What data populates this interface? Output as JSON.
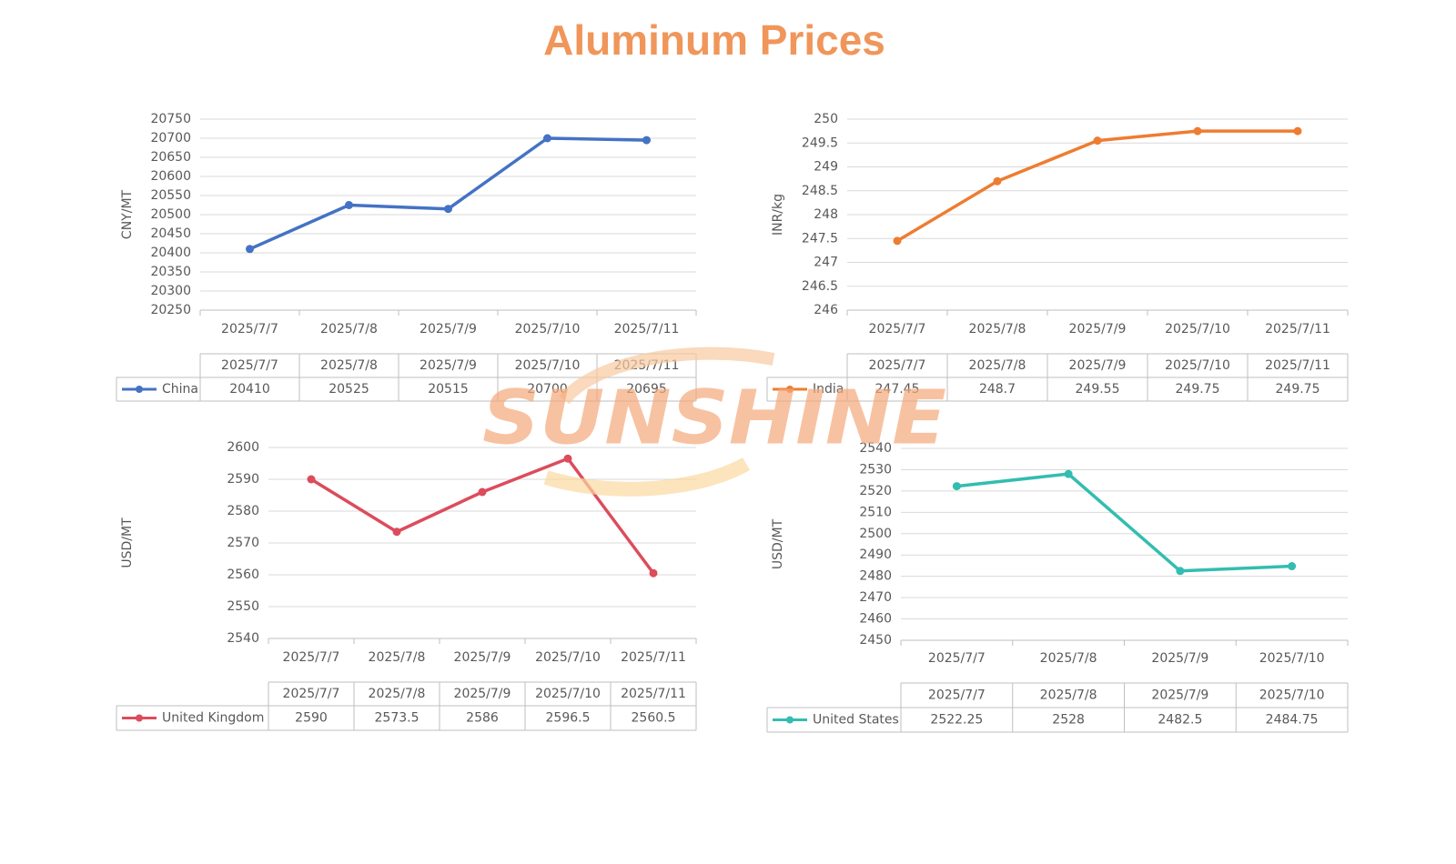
{
  "title": "Aluminum Prices",
  "watermark": "SUNSHINE",
  "chart_data": [
    {
      "type": "line",
      "ylabel": "CNY/MT",
      "categories": [
        "2025/7/7",
        "2025/7/8",
        "2025/7/9",
        "2025/7/10",
        "2025/7/11"
      ],
      "series": [
        {
          "name": "China",
          "color": "#4472c4",
          "values": [
            20410,
            20525,
            20515,
            20700,
            20695
          ]
        }
      ],
      "ylim": [
        20250,
        20750
      ],
      "yticks": [
        20250,
        20300,
        20350,
        20400,
        20450,
        20500,
        20550,
        20600,
        20650,
        20700,
        20750
      ],
      "grid": true,
      "data_table": true
    },
    {
      "type": "line",
      "ylabel": "INR/kg",
      "categories": [
        "2025/7/7",
        "2025/7/8",
        "2025/7/9",
        "2025/7/10",
        "2025/7/11"
      ],
      "series": [
        {
          "name": "India",
          "color": "#ed7d31",
          "values": [
            247.45,
            248.7,
            249.55,
            249.75,
            249.75
          ]
        }
      ],
      "ylim": [
        246,
        250
      ],
      "yticks": [
        246,
        246.5,
        247,
        247.5,
        248,
        248.5,
        249,
        249.5,
        250
      ],
      "grid": true,
      "data_table": true
    },
    {
      "type": "line",
      "ylabel": "USD/MT",
      "categories": [
        "2025/7/7",
        "2025/7/8",
        "2025/7/9",
        "2025/7/10",
        "2025/7/11"
      ],
      "series": [
        {
          "name": "United Kingdom",
          "color": "#dc4c5c",
          "values": [
            2590,
            2573.5,
            2586,
            2596.5,
            2560.5
          ]
        }
      ],
      "ylim": [
        2540,
        2600
      ],
      "yticks": [
        2540,
        2550,
        2560,
        2570,
        2580,
        2590,
        2600
      ],
      "grid": true,
      "data_table": true
    },
    {
      "type": "line",
      "ylabel": "USD/MT",
      "categories": [
        "2025/7/7",
        "2025/7/8",
        "2025/7/9",
        "2025/7/10"
      ],
      "series": [
        {
          "name": "United States",
          "color": "#33bdb0",
          "values": [
            2522.25,
            2528,
            2482.5,
            2484.75
          ]
        }
      ],
      "ylim": [
        2450,
        2540
      ],
      "yticks": [
        2450,
        2460,
        2470,
        2480,
        2490,
        2500,
        2510,
        2520,
        2530,
        2540
      ],
      "grid": true,
      "data_table": true
    }
  ]
}
